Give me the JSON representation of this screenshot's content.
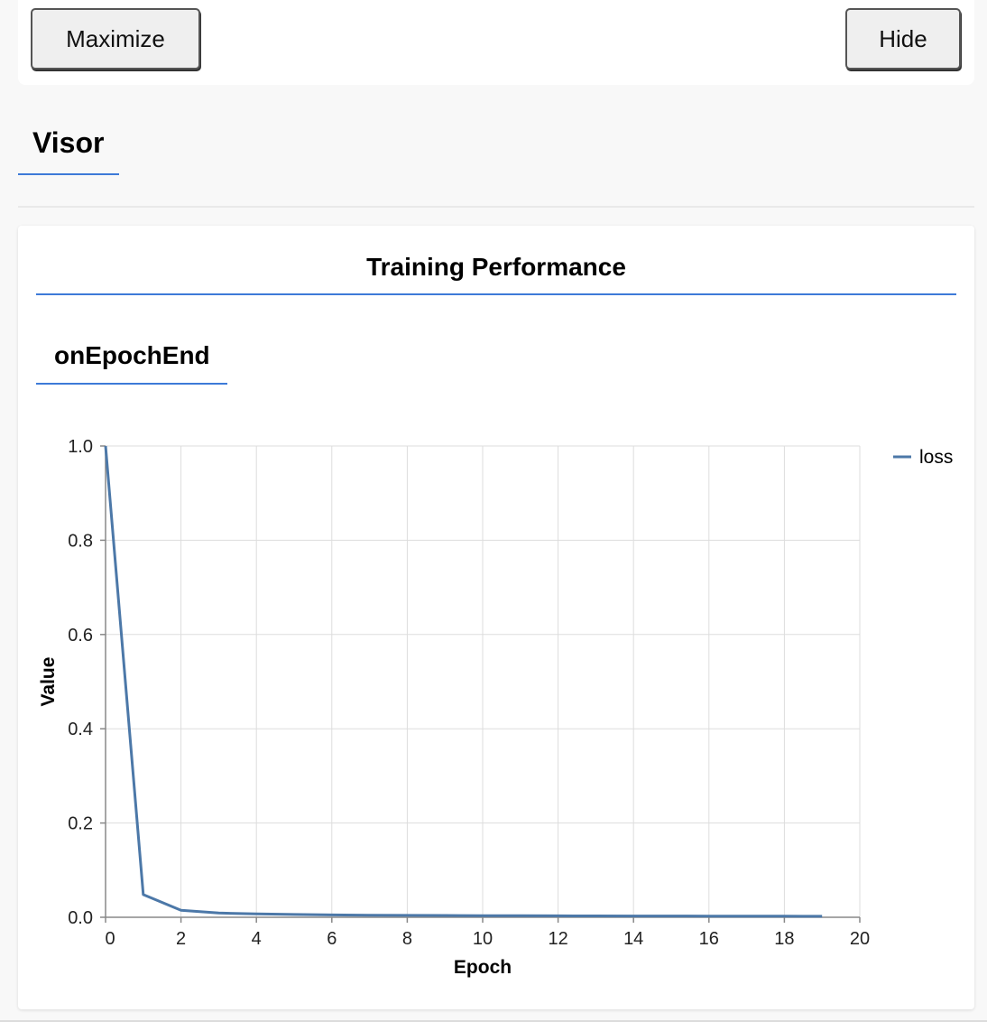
{
  "toolbar": {
    "maximize_label": "Maximize",
    "hide_label": "Hide"
  },
  "visor": {
    "tab_label": "Visor"
  },
  "card": {
    "title": "Training Performance",
    "subtab_label": "onEpochEnd"
  },
  "colors": {
    "accent": "#3d7ad8",
    "series": "#4c78a8",
    "grid": "#dddddd"
  },
  "chart_data": {
    "type": "line",
    "xlabel": "Epoch",
    "ylabel": "Value",
    "xlim": [
      0,
      20
    ],
    "ylim": [
      0,
      1.0
    ],
    "x_ticks": [
      "0",
      "2",
      "4",
      "6",
      "8",
      "10",
      "12",
      "14",
      "16",
      "18",
      "20"
    ],
    "y_ticks": [
      "0.0",
      "0.2",
      "0.4",
      "0.6",
      "0.8",
      "1.0"
    ],
    "grid": true,
    "legend_position": "top-right",
    "series": [
      {
        "name": "loss",
        "x": [
          0,
          1,
          2,
          3,
          4,
          5,
          6,
          7,
          8,
          9,
          10,
          11,
          12,
          13,
          14,
          15,
          16,
          17,
          18,
          19
        ],
        "y": [
          1.0,
          0.048,
          0.015,
          0.009,
          0.007,
          0.006,
          0.005,
          0.0045,
          0.004,
          0.0038,
          0.0035,
          0.0033,
          0.003,
          0.0029,
          0.0027,
          0.0026,
          0.0025,
          0.0024,
          0.0023,
          0.0022
        ]
      }
    ]
  }
}
